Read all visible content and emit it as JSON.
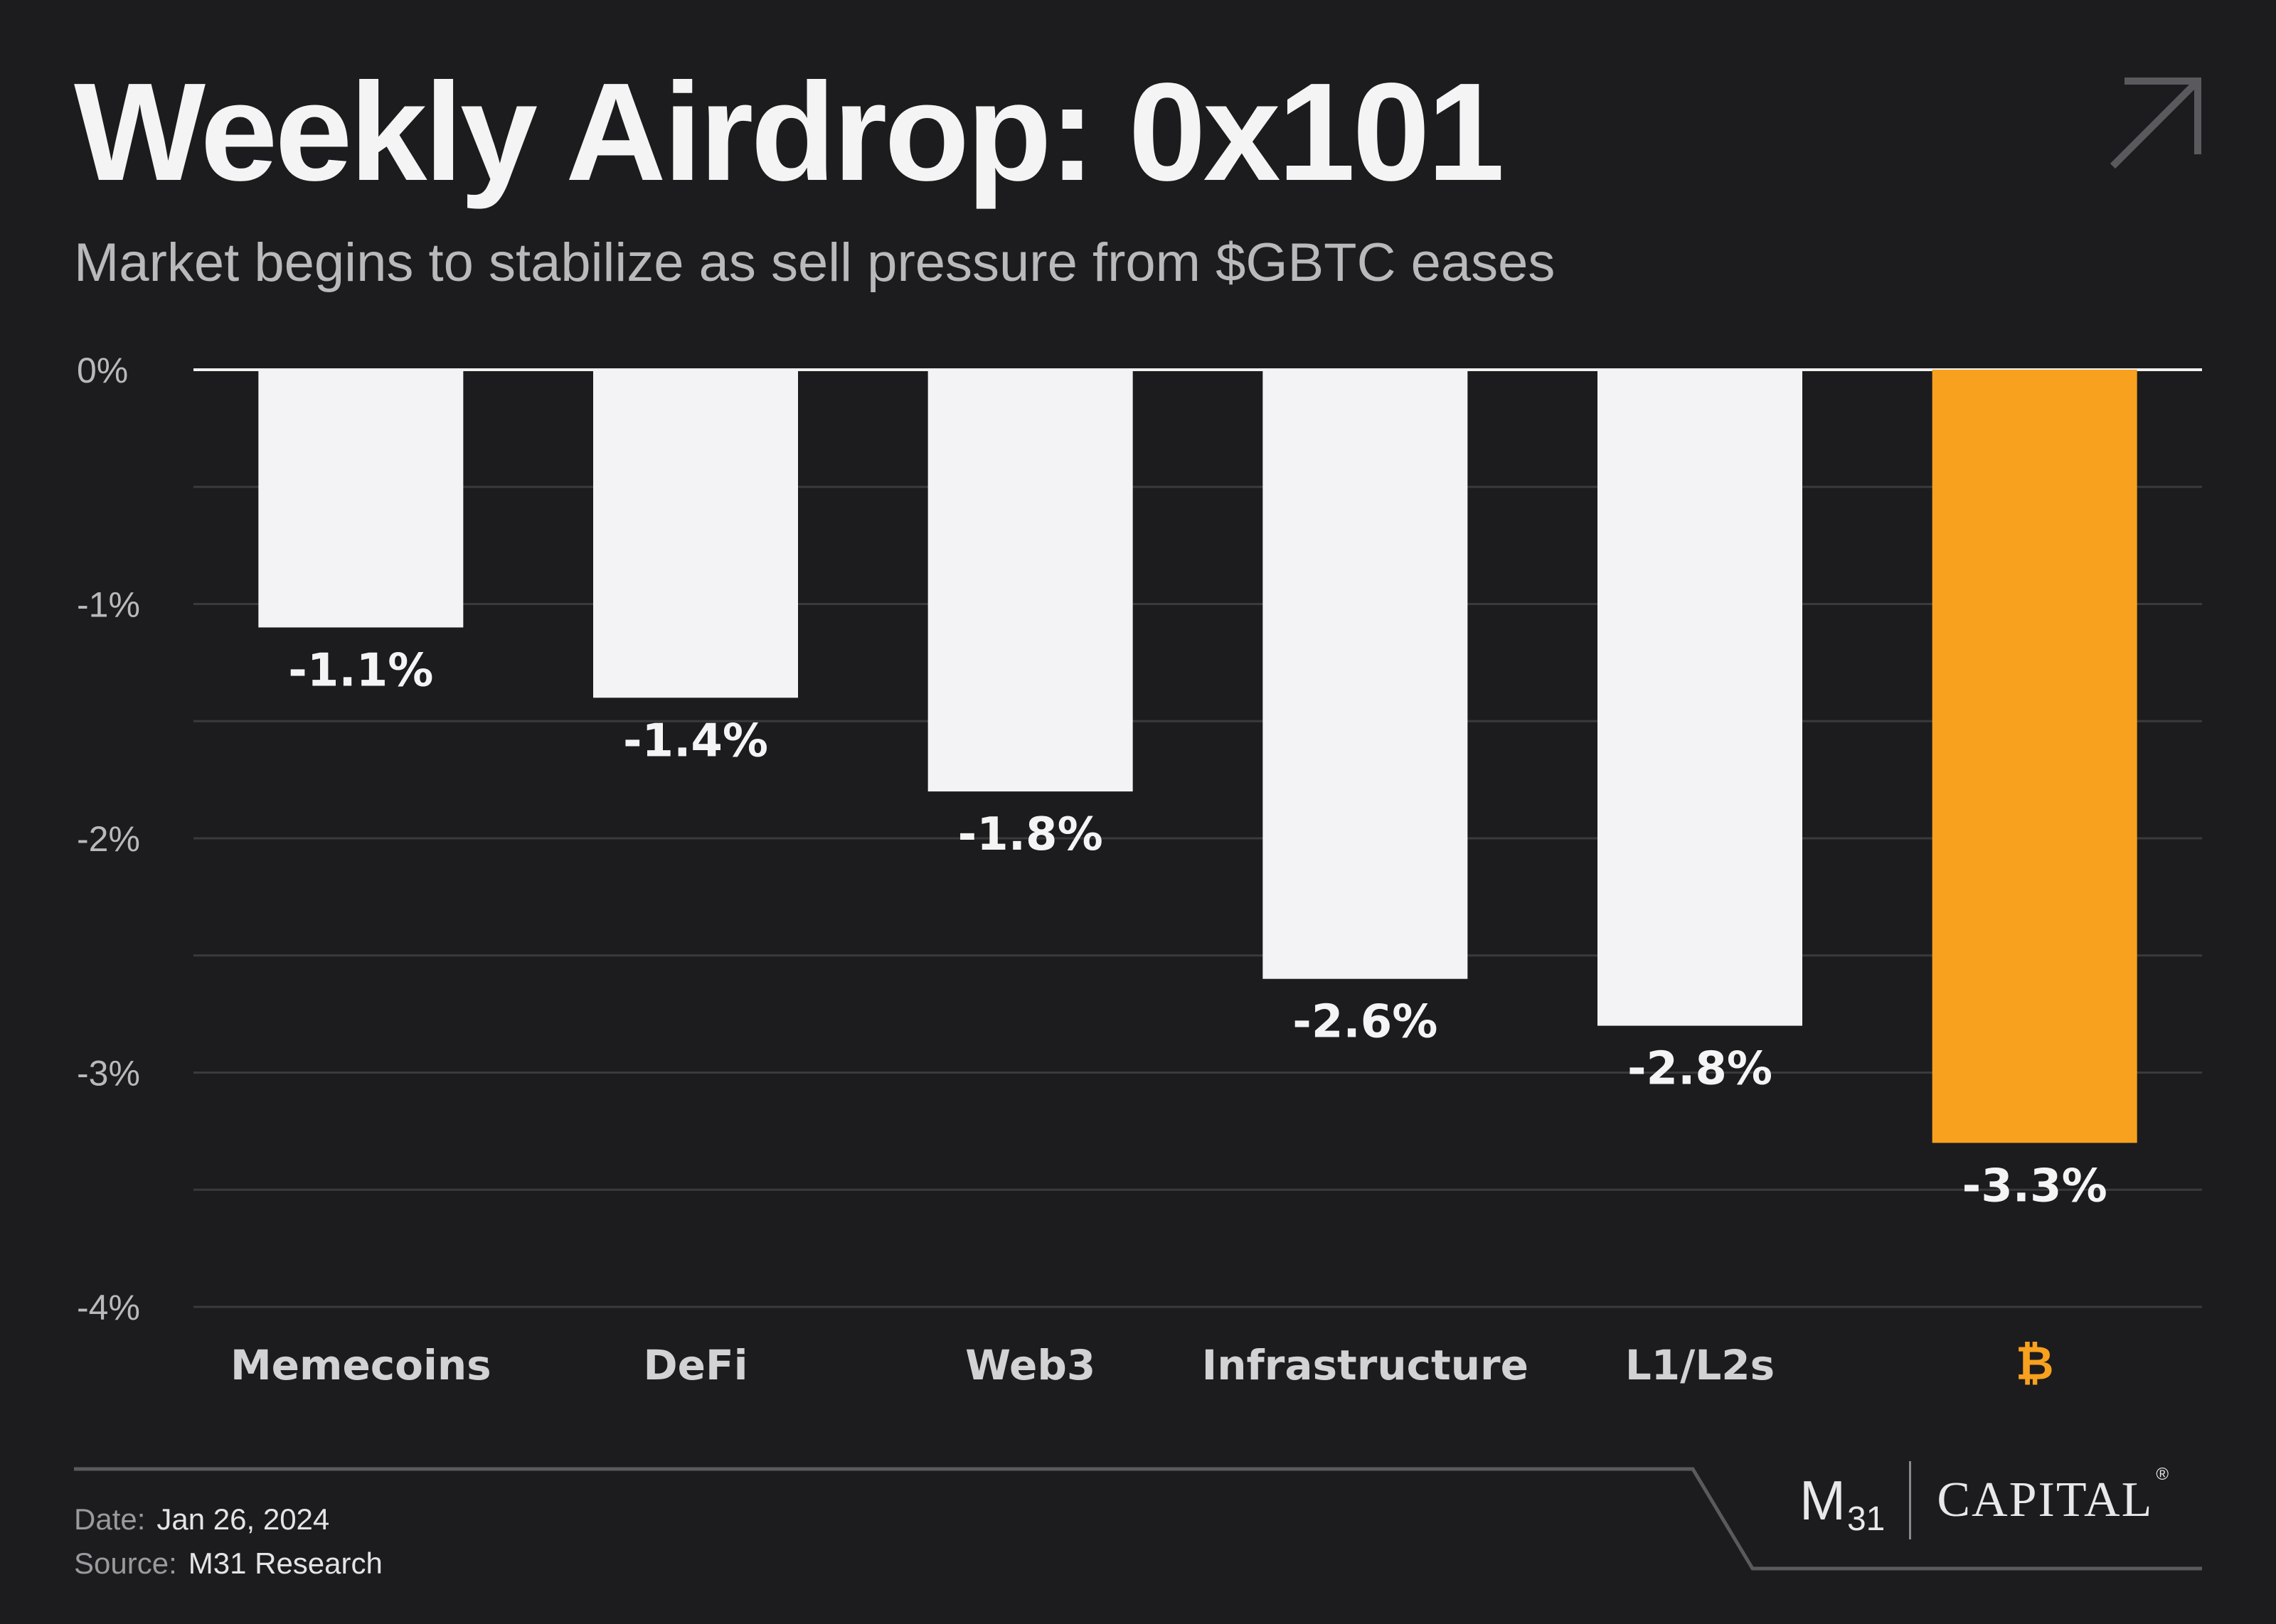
{
  "header": {
    "title": "Weekly Airdrop: 0x101",
    "subtitle": "Market begins to stabilize as sell pressure from $GBTC eases",
    "corner_icon": "arrow-up-right-icon"
  },
  "chart_data": {
    "type": "bar",
    "categories": [
      "Memecoins",
      "DeFi",
      "Web3",
      "Infrastructure",
      "L1/L2s",
      "₿"
    ],
    "values": [
      -1.1,
      -1.4,
      -1.8,
      -2.6,
      -2.8,
      -3.3
    ],
    "bar_labels": [
      "-1.1%",
      "-1.4%",
      "-1.8%",
      "-2.6%",
      "-2.8%",
      "-3.3%"
    ],
    "highlight_category": "₿",
    "ylim": [
      -4,
      0
    ],
    "yticks": [
      0,
      -1,
      -2,
      -3,
      -4
    ],
    "ytick_labels": [
      "0%",
      "-1%",
      "-2%",
      "-3%",
      "-4%"
    ],
    "grid": true,
    "colors": {
      "bar": "#f3f3f6",
      "highlight": "#f7a11f",
      "background": "#1c1c1e"
    }
  },
  "footer": {
    "date_label": "Date:",
    "date_value": "Jan 26, 2024",
    "source_label": "Source:",
    "source_value": "M31 Research"
  },
  "brand": {
    "mark": "M",
    "mark_sub": "31",
    "name": "CAPITAL",
    "reg": "®"
  }
}
